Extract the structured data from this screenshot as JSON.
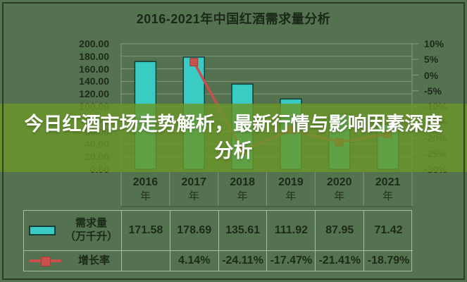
{
  "title_bar": {
    "title": "2016-2021年中国红酒需求量分析"
  },
  "banner": {
    "text": "今日红酒市场走势解析，最新行情与影响因素深度分析"
  },
  "chart_data": {
    "type": "bar",
    "subtype": "bar-line-combo",
    "title": "2016-2021年中国红酒需求量分析",
    "categories": [
      "2016年",
      "2017年",
      "2018年",
      "2019年",
      "2020年",
      "2021年"
    ],
    "series": [
      {
        "name": "需求量（万千升）",
        "chart": "bar",
        "axis": "left",
        "color": "#3acbc4",
        "values": [
          171.58,
          178.69,
          135.61,
          111.92,
          87.95,
          71.42
        ]
      },
      {
        "name": "增长率",
        "chart": "line",
        "axis": "right",
        "unit": "%",
        "color": "#c8504c",
        "values": [
          null,
          4.14,
          -24.11,
          -17.47,
          -21.41,
          -18.79
        ]
      }
    ],
    "left_axis": {
      "min": 0,
      "max": 200,
      "step": 20,
      "labels": [
        "200.00",
        "180.00",
        "160.00",
        "140.00",
        "120.00",
        "100.00",
        "80.00",
        "60.00",
        "40.00",
        "20.00",
        "0.00"
      ]
    },
    "right_axis": {
      "min": -30,
      "max": 10,
      "step": 5,
      "labels": [
        "10%",
        "5%",
        "0%",
        "-5%",
        "-10%",
        "-15%",
        "-20%",
        "-25%",
        "-30%"
      ]
    },
    "grid": true,
    "legend_position": "bottom-table"
  },
  "data_table": {
    "rows": [
      {
        "legend": "bar-swatch",
        "label_lines": [
          "需求量",
          "（万千升）"
        ],
        "cells": [
          "171.58",
          "178.69",
          "135.61",
          "111.92",
          "87.95",
          "71.42"
        ]
      },
      {
        "legend": "line-marker",
        "label_lines": [
          "增长率"
        ],
        "cells": [
          "",
          "4.14%",
          "-24.11%",
          "-17.47%",
          "-21.41%",
          "-18.79%"
        ]
      }
    ]
  },
  "colors": {
    "background": "#547150",
    "bar_fill": "#3acbc4",
    "bar_border": "#123f3a",
    "line": "#c8504c",
    "gridline": "#96a58f",
    "banner_bg": "#6a9729",
    "banner_text": "#ffffff",
    "axis_text": "#1d2a19"
  }
}
